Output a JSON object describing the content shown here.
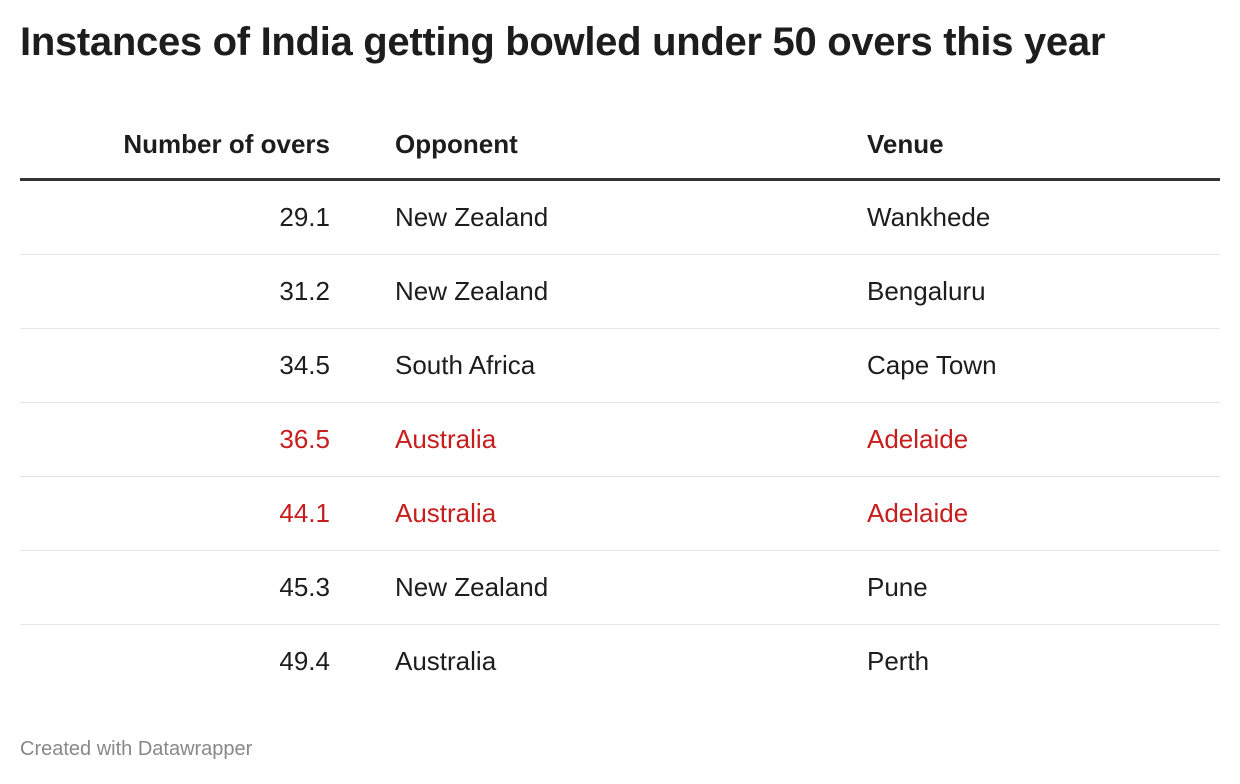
{
  "title": "Instances of India getting bowled under 50 overs this year",
  "footer": "Created with Datawrapper",
  "colors": {
    "highlight": "#c71e1d",
    "text": "#1d1d1d"
  },
  "chart_data": {
    "type": "table",
    "columns": [
      "Number of overs",
      "Opponent",
      "Venue"
    ],
    "rows": [
      {
        "overs": "29.1",
        "opponent": "New Zealand",
        "venue": "Wankhede",
        "highlight": false
      },
      {
        "overs": "31.2",
        "opponent": "New Zealand",
        "venue": "Bengaluru",
        "highlight": false
      },
      {
        "overs": "34.5",
        "opponent": "South Africa",
        "venue": "Cape Town",
        "highlight": false
      },
      {
        "overs": "36.5",
        "opponent": "Australia",
        "venue": "Adelaide",
        "highlight": true
      },
      {
        "overs": "44.1",
        "opponent": "Australia",
        "venue": "Adelaide",
        "highlight": true
      },
      {
        "overs": "45.3",
        "opponent": "New Zealand",
        "venue": "Pune",
        "highlight": false
      },
      {
        "overs": "49.4",
        "opponent": "Australia",
        "venue": "Perth",
        "highlight": false
      }
    ]
  }
}
